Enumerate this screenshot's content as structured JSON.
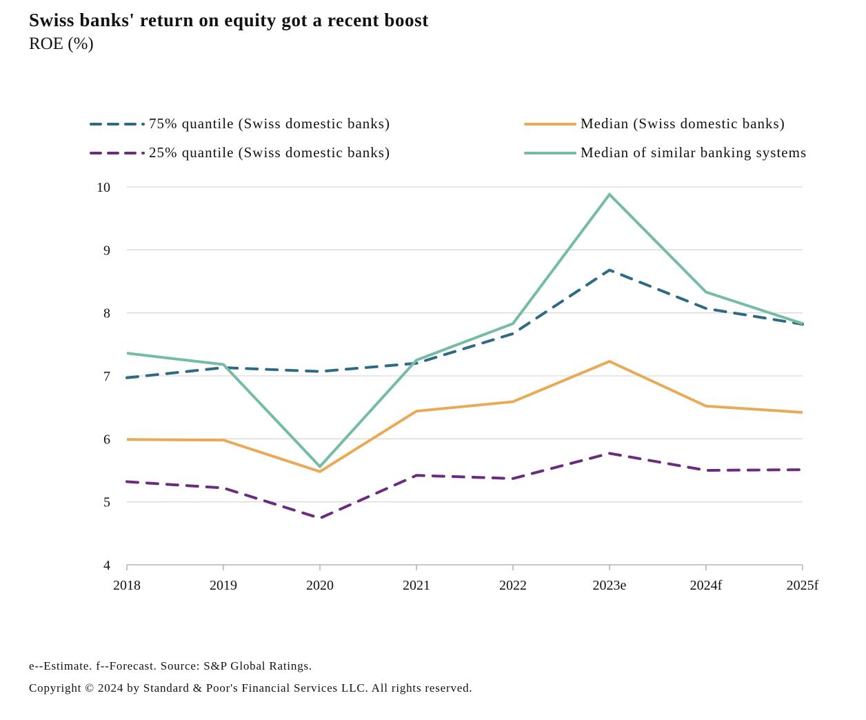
{
  "chart_data": {
    "type": "line",
    "title": "Swiss banks' return on equity got a recent boost",
    "subtitle": "ROE (%)",
    "xlabel": "",
    "ylabel": "ROE (%)",
    "categories": [
      "2018",
      "2019",
      "2020",
      "2021",
      "2022",
      "2023e",
      "2024f",
      "2025f"
    ],
    "ylim": [
      4,
      10
    ],
    "yticks": [
      "4",
      "5",
      "6",
      "7",
      "8",
      "9",
      "10"
    ],
    "grid": true,
    "legend_position": "top",
    "series": [
      {
        "name": "75% quantile (Swiss domestic banks)",
        "style": "dashed",
        "color": "#2e6a85",
        "values": [
          6.97,
          7.13,
          7.07,
          7.2,
          7.67,
          8.68,
          8.07,
          7.82
        ]
      },
      {
        "name": "25% quantile (Swiss domestic banks)",
        "style": "dashed",
        "color": "#6b2c7f",
        "values": [
          5.32,
          5.22,
          4.74,
          5.42,
          5.37,
          5.77,
          5.5,
          5.51
        ]
      },
      {
        "name": "Median (Swiss domestic banks)",
        "style": "solid",
        "color": "#e9aa58",
        "values": [
          5.99,
          5.98,
          5.48,
          6.44,
          6.59,
          7.23,
          6.52,
          6.42
        ]
      },
      {
        "name": "Median of similar banking systems",
        "style": "solid",
        "color": "#74bca2",
        "values": [
          7.36,
          7.18,
          5.56,
          7.25,
          7.83,
          9.88,
          8.33,
          7.83
        ]
      }
    ]
  },
  "footnotes": {
    "notes": "e--Estimate. f--Forecast. Source: S&P Global Ratings.",
    "copyright": "Copyright © 2024 by Standard & Poor's Financial Services LLC. All rights reserved."
  }
}
